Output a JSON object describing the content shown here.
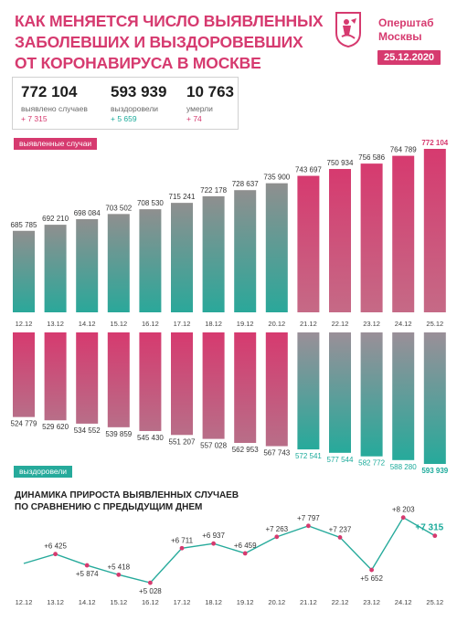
{
  "header": {
    "title_lines": [
      "КАК МЕНЯЕТСЯ ЧИСЛО ВЫЯВЛЕННЫХ",
      "ЗАБОЛЕВШИХ И ВЫЗДОРОВЕВШИХ",
      "ОТ КОРОНАВИРУСА В МОСКВЕ"
    ],
    "org_lines": [
      "Оперштаб",
      "Москвы"
    ],
    "date": "25.12.2020"
  },
  "stats": [
    {
      "value": "772 104",
      "label": "выявлено случаев",
      "delta": "+ 7 315",
      "color": "#d63a6f"
    },
    {
      "value": "593 939",
      "label": "выздоровели",
      "delta": "+ 5 659",
      "color": "#1aaa9a"
    },
    {
      "value": "10 763",
      "label": "умерли",
      "delta": "+ 74",
      "color": "#d63a6f"
    }
  ],
  "labels": {
    "cases_tag": "выявленные случаи",
    "recovered_tag": "выздоровели",
    "dynamics_title_1": "ДИНАМИКА ПРИРОСТА ВЫЯВЛЕННЫХ СЛУЧАЕВ",
    "dynamics_title_2": "ПО СРАВНЕНИЮ С ПРЕДЫДУЩИМ ДНЕМ"
  },
  "colors": {
    "accent": "#d63a6f",
    "teal": "#26aa9b"
  },
  "chart_data": [
    {
      "type": "bar",
      "categories": [
        "12.12",
        "13.12",
        "14.12",
        "15.12",
        "16.12",
        "17.12",
        "18.12",
        "19.12",
        "20.12",
        "21.12",
        "22.12",
        "23.12",
        "24.12",
        "25.12"
      ],
      "series": [
        {
          "name": "выявленные случаи",
          "values": [
            685785,
            692210,
            698084,
            703502,
            708530,
            715241,
            722178,
            728637,
            735900,
            743697,
            750934,
            756586,
            764789,
            772104
          ],
          "labels": [
            "685 785",
            "692 210",
            "698 084",
            "703 502",
            "708 530",
            "715 241",
            "722 178",
            "728 637",
            "735 900",
            "743 697",
            "750 934",
            "756 586",
            "764 789",
            "772 104"
          ]
        }
      ]
    },
    {
      "type": "bar",
      "categories": [
        "12.12",
        "13.12",
        "14.12",
        "15.12",
        "16.12",
        "17.12",
        "18.12",
        "19.12",
        "20.12",
        "21.12",
        "22.12",
        "23.12",
        "24.12",
        "25.12"
      ],
      "series": [
        {
          "name": "выздоровели",
          "values": [
            524779,
            529620,
            534552,
            539859,
            545430,
            551207,
            557028,
            562953,
            567743,
            572541,
            577544,
            582772,
            588280,
            593939
          ],
          "labels": [
            "524 779",
            "529 620",
            "534 552",
            "539 859",
            "545 430",
            "551 207",
            "557 028",
            "562 953",
            "567 743",
            "572 541",
            "577 544",
            "582 772",
            "588 280",
            "593 939"
          ]
        }
      ]
    },
    {
      "type": "line",
      "title": "ДИНАМИКА ПРИРОСТА ВЫЯВЛЕННЫХ СЛУЧАЕВ ПО СРАВНЕНИЮ С ПРЕДЫДУЩИМ ДНЕМ",
      "x": [
        "12.12",
        "13.12",
        "14.12",
        "15.12",
        "16.12",
        "17.12",
        "18.12",
        "19.12",
        "20.12",
        "21.12",
        "22.12",
        "23.12",
        "24.12",
        "25.12"
      ],
      "series": [
        {
          "name": "",
          "values": [
            null,
            6425,
            5874,
            5418,
            5028,
            6711,
            6937,
            6459,
            7263,
            7797,
            7237,
            5652,
            8203,
            7315
          ],
          "labels": [
            "",
            "+6 425",
            "+5 874",
            "+5 418",
            "+5 028",
            "+6 711",
            "+6 937",
            "+6 459",
            "+7 263",
            "+7 797",
            "+7 237",
            "+5 652",
            "+8 203",
            "+7 315"
          ]
        }
      ]
    }
  ]
}
